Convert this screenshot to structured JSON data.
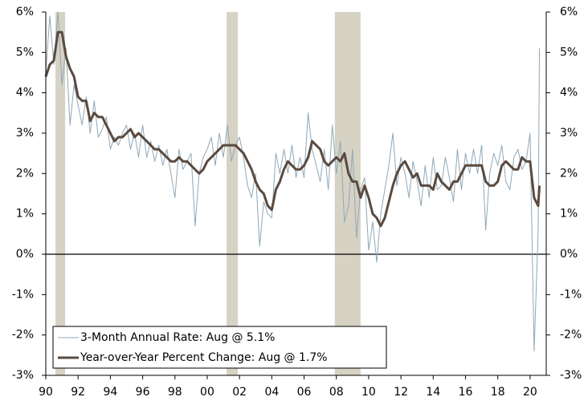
{
  "chart_data": {
    "type": "line",
    "x": [
      1990,
      1990.25,
      1990.5,
      1990.75,
      1991,
      1991.25,
      1991.5,
      1991.75,
      1992,
      1992.25,
      1992.5,
      1992.75,
      1993,
      1993.25,
      1993.5,
      1993.75,
      1994,
      1994.25,
      1994.5,
      1994.75,
      1995,
      1995.25,
      1995.5,
      1995.75,
      1996,
      1996.25,
      1996.5,
      1996.75,
      1997,
      1997.25,
      1997.5,
      1997.75,
      1998,
      1998.25,
      1998.5,
      1998.75,
      1999,
      1999.25,
      1999.5,
      1999.75,
      2000,
      2000.25,
      2000.5,
      2000.75,
      2001,
      2001.25,
      2001.5,
      2001.75,
      2002,
      2002.25,
      2002.5,
      2002.75,
      2003,
      2003.25,
      2003.5,
      2003.75,
      2004,
      2004.25,
      2004.5,
      2004.75,
      2005,
      2005.25,
      2005.5,
      2005.75,
      2006,
      2006.25,
      2006.5,
      2006.75,
      2007,
      2007.25,
      2007.5,
      2007.75,
      2008,
      2008.25,
      2008.5,
      2008.75,
      2009,
      2009.25,
      2009.5,
      2009.75,
      2010,
      2010.25,
      2010.5,
      2010.75,
      2011,
      2011.25,
      2011.5,
      2011.75,
      2012,
      2012.25,
      2012.5,
      2012.75,
      2013,
      2013.25,
      2013.5,
      2013.75,
      2014,
      2014.25,
      2014.5,
      2014.75,
      2015,
      2015.25,
      2015.5,
      2015.75,
      2016,
      2016.25,
      2016.5,
      2016.75,
      2017,
      2017.25,
      2017.5,
      2017.75,
      2018,
      2018.25,
      2018.5,
      2018.75,
      2019,
      2019.25,
      2019.5,
      2019.75,
      2020,
      2020.25,
      2020.5,
      2020.58
    ],
    "series": [
      {
        "name": "3-Month Annual Rate: Aug @ 5.1%",
        "color": "#8fa8b8",
        "width": 1,
        "values": [
          4.5,
          5.9,
          4.7,
          6.0,
          4.2,
          5.1,
          3.2,
          4.2,
          3.7,
          3.2,
          3.9,
          3.0,
          3.8,
          2.9,
          3.1,
          3.4,
          2.6,
          2.9,
          2.7,
          3.0,
          3.2,
          2.6,
          3.0,
          2.4,
          3.2,
          2.4,
          2.8,
          2.3,
          2.7,
          2.2,
          2.6,
          2.0,
          1.4,
          2.6,
          2.1,
          2.3,
          2.5,
          0.7,
          2.0,
          2.4,
          2.6,
          2.9,
          2.2,
          3.0,
          2.4,
          3.2,
          2.3,
          2.7,
          2.9,
          2.4,
          1.7,
          1.4,
          2.0,
          0.2,
          1.3,
          1.0,
          0.9,
          2.5,
          2.0,
          2.6,
          2.0,
          2.7,
          1.9,
          2.4,
          1.9,
          3.5,
          2.6,
          2.2,
          1.8,
          2.6,
          1.6,
          3.2,
          2.0,
          2.8,
          0.8,
          1.2,
          2.6,
          0.4,
          1.6,
          1.9,
          0.1,
          0.8,
          -0.2,
          1.0,
          1.6,
          2.2,
          3.0,
          1.7,
          2.4,
          2.0,
          1.4,
          2.3,
          1.8,
          1.2,
          2.2,
          1.4,
          2.4,
          1.6,
          1.7,
          2.4,
          1.9,
          1.3,
          2.6,
          1.6,
          2.5,
          2.0,
          2.6,
          2.0,
          2.7,
          0.6,
          2.0,
          2.5,
          2.2,
          2.7,
          1.8,
          1.6,
          2.4,
          2.6,
          2.1,
          2.3,
          3.0,
          -2.4,
          0.6,
          5.1
        ]
      },
      {
        "name": "Year-over-Year Percent Change: Aug @ 1.7%",
        "color": "#5a4a3f",
        "width": 3,
        "values": [
          4.4,
          4.7,
          4.8,
          5.5,
          5.5,
          4.9,
          4.6,
          4.4,
          3.9,
          3.8,
          3.8,
          3.3,
          3.5,
          3.4,
          3.4,
          3.2,
          3.0,
          2.8,
          2.9,
          2.9,
          3.0,
          3.1,
          2.9,
          3.0,
          2.9,
          2.8,
          2.7,
          2.6,
          2.6,
          2.5,
          2.4,
          2.3,
          2.3,
          2.4,
          2.3,
          2.3,
          2.2,
          2.1,
          2.0,
          2.1,
          2.3,
          2.4,
          2.5,
          2.6,
          2.7,
          2.7,
          2.7,
          2.7,
          2.6,
          2.5,
          2.3,
          2.1,
          1.8,
          1.6,
          1.5,
          1.2,
          1.1,
          1.6,
          1.8,
          2.1,
          2.3,
          2.2,
          2.1,
          2.1,
          2.2,
          2.4,
          2.8,
          2.7,
          2.6,
          2.3,
          2.2,
          2.3,
          2.4,
          2.3,
          2.5,
          2.0,
          1.8,
          1.8,
          1.4,
          1.7,
          1.4,
          1.0,
          0.9,
          0.7,
          0.9,
          1.3,
          1.7,
          2.0,
          2.2,
          2.3,
          2.1,
          1.9,
          2.0,
          1.7,
          1.7,
          1.7,
          1.6,
          2.0,
          1.8,
          1.7,
          1.6,
          1.8,
          1.8,
          2.0,
          2.2,
          2.2,
          2.2,
          2.2,
          2.2,
          1.8,
          1.7,
          1.7,
          1.8,
          2.2,
          2.3,
          2.2,
          2.1,
          2.1,
          2.4,
          2.3,
          2.3,
          1.4,
          1.2,
          1.7
        ]
      }
    ],
    "recessions": [
      [
        1990.6,
        1991.2
      ],
      [
        2001.2,
        2001.9
      ],
      [
        2007.9,
        2009.5
      ]
    ],
    "recession_color": "#d6d2c4",
    "xlim": [
      1990,
      2021
    ],
    "xticks": [
      {
        "value": 1990,
        "label": "90"
      },
      {
        "value": 1992,
        "label": "92"
      },
      {
        "value": 1994,
        "label": "94"
      },
      {
        "value": 1996,
        "label": "96"
      },
      {
        "value": 1998,
        "label": "98"
      },
      {
        "value": 2000,
        "label": "00"
      },
      {
        "value": 2002,
        "label": "02"
      },
      {
        "value": 2004,
        "label": "04"
      },
      {
        "value": 2006,
        "label": "06"
      },
      {
        "value": 2008,
        "label": "08"
      },
      {
        "value": 2010,
        "label": "10"
      },
      {
        "value": 2012,
        "label": "12"
      },
      {
        "value": 2014,
        "label": "14"
      },
      {
        "value": 2016,
        "label": "16"
      },
      {
        "value": 2018,
        "label": "18"
      },
      {
        "value": 2020,
        "label": "20"
      }
    ],
    "ylim": [
      -3,
      6
    ],
    "yticks": [
      {
        "value": -3,
        "label": "-3%"
      },
      {
        "value": -2,
        "label": "-2%"
      },
      {
        "value": -1,
        "label": "-1%"
      },
      {
        "value": 0,
        "label": "0%"
      },
      {
        "value": 1,
        "label": "1%"
      },
      {
        "value": 2,
        "label": "2%"
      },
      {
        "value": 3,
        "label": "3%"
      },
      {
        "value": 4,
        "label": "4%"
      },
      {
        "value": 5,
        "label": "5%"
      },
      {
        "value": 6,
        "label": "6%"
      }
    ],
    "y2lim": [
      -3,
      6
    ],
    "y2ticks": [
      {
        "value": -3,
        "label": "-3%"
      },
      {
        "value": -2,
        "label": "-2%"
      },
      {
        "value": -1,
        "label": "-1%"
      },
      {
        "value": 0,
        "label": "0%"
      },
      {
        "value": 1,
        "label": "1%"
      },
      {
        "value": 2,
        "label": "2%"
      },
      {
        "value": 3,
        "label": "3%"
      },
      {
        "value": 4,
        "label": "4%"
      },
      {
        "value": 5,
        "label": "5%"
      },
      {
        "value": 6,
        "label": "6%"
      }
    ],
    "grid": false,
    "legend": "lower left"
  }
}
